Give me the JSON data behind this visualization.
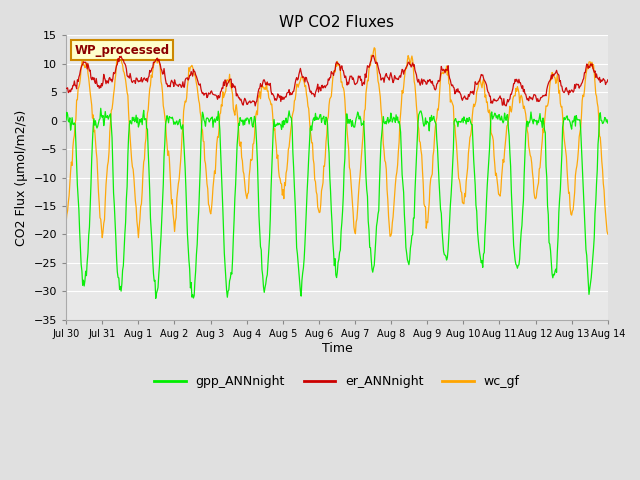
{
  "title": "WP CO2 Fluxes",
  "xlabel": "Time",
  "ylabel": "CO2 Flux (μmol/m2/s)",
  "ylim": [
    -35,
    15
  ],
  "yticks": [
    -35,
    -30,
    -25,
    -20,
    -15,
    -10,
    -5,
    0,
    5,
    10,
    15
  ],
  "watermark": "WP_processed",
  "fig_bg_color": "#e0e0e0",
  "plot_bg_color": "#e8e8e8",
  "grid_color": "#ffffff",
  "gpp_color": "#00ee00",
  "er_color": "#cc0000",
  "wc_color": "#ffa500",
  "x_start_days": 0,
  "x_end_days": 15,
  "xtick_labels": [
    "Jul 30",
    "Jul 31",
    "Aug 1",
    "Aug 2",
    "Aug 3",
    "Aug 4",
    "Aug 5",
    "Aug 6",
    "Aug 7",
    "Aug 8",
    "Aug 9",
    "Aug 10",
    "Aug 11",
    "Aug 12",
    "Aug 13",
    "Aug 14"
  ],
  "xtick_positions": [
    0,
    1,
    2,
    3,
    4,
    5,
    6,
    7,
    8,
    9,
    10,
    11,
    12,
    13,
    14,
    15
  ]
}
